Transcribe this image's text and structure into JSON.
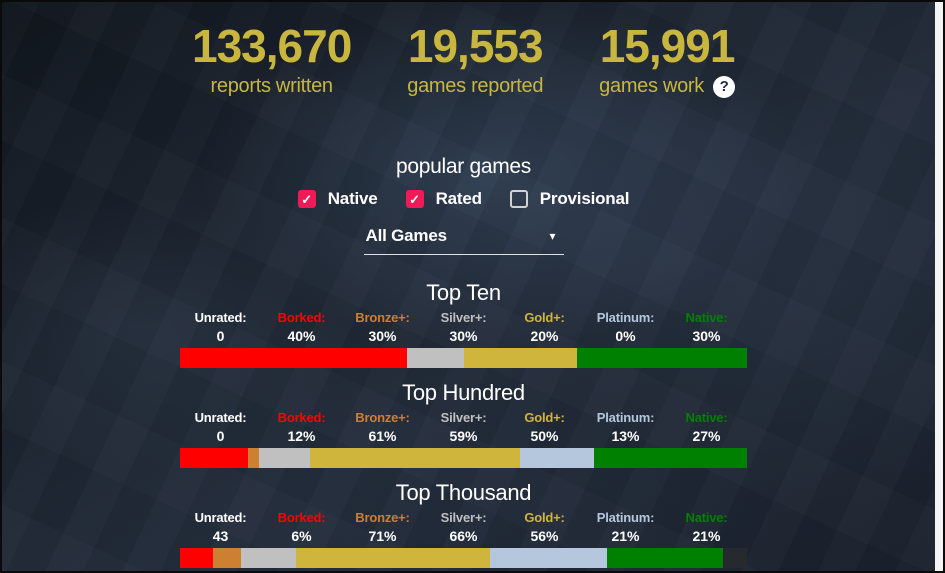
{
  "page": {
    "background_color": "#1e2531",
    "scrollbar_color": "#e9eaec",
    "accent_gold": "#c8b63f",
    "accent_pink": "#ef1a56"
  },
  "stats": [
    {
      "value": "133,670",
      "label": "reports written"
    },
    {
      "value": "19,553",
      "label": "games reported"
    },
    {
      "value": "15,991",
      "label": "games work"
    }
  ],
  "help_icon_glyph": "?",
  "popular_games": {
    "title": "popular games",
    "filters": [
      {
        "label": "Native",
        "checked": true
      },
      {
        "label": "Rated",
        "checked": true
      },
      {
        "label": "Provisional",
        "checked": false
      }
    ],
    "checkmark_glyph": "✓",
    "dropdown_value": "All Games",
    "dropdown_arrow": "▾"
  },
  "tiers": {
    "labels": [
      "Unrated:",
      "Borked:",
      "Bronze+:",
      "Silver+:",
      "Gold+:",
      "Platinum:",
      "Native:"
    ],
    "label_colors": [
      "#ffffff",
      "#fe0000",
      "#cd7f32",
      "#c0c0c0",
      "#cfb53b",
      "#b4c7dc",
      "#008000"
    ]
  },
  "bar_colors": {
    "borked": "#fe0000",
    "bronze": "#cd7f32",
    "silver": "#c0c0c0",
    "gold": "#cfb53b",
    "platinum": "#b4c7dc",
    "native": "#008000",
    "unrated": "#26292e"
  },
  "sections": [
    {
      "title": "Top Ten",
      "values": [
        "0",
        "40%",
        "30%",
        "30%",
        "20%",
        "0%",
        "30%"
      ],
      "segments": [
        {
          "tier": "borked",
          "pct": 40
        },
        {
          "tier": "bronze",
          "pct": 0
        },
        {
          "tier": "silver",
          "pct": 10
        },
        {
          "tier": "gold",
          "pct": 20
        },
        {
          "tier": "platinum",
          "pct": 0
        },
        {
          "tier": "native",
          "pct": 30
        },
        {
          "tier": "unrated",
          "pct": 0
        }
      ]
    },
    {
      "title": "Top Hundred",
      "values": [
        "0",
        "12%",
        "61%",
        "59%",
        "50%",
        "13%",
        "27%"
      ],
      "segments": [
        {
          "tier": "borked",
          "pct": 12
        },
        {
          "tier": "bronze",
          "pct": 2
        },
        {
          "tier": "silver",
          "pct": 9
        },
        {
          "tier": "gold",
          "pct": 37
        },
        {
          "tier": "platinum",
          "pct": 13
        },
        {
          "tier": "native",
          "pct": 27
        },
        {
          "tier": "unrated",
          "pct": 0
        }
      ]
    },
    {
      "title": "Top Thousand",
      "values": [
        "43",
        "6%",
        "71%",
        "66%",
        "56%",
        "21%",
        "21%"
      ],
      "segments": [
        {
          "tier": "borked",
          "pct": 6
        },
        {
          "tier": "bronze",
          "pct": 5
        },
        {
          "tier": "silver",
          "pct": 10
        },
        {
          "tier": "gold",
          "pct": 35
        },
        {
          "tier": "platinum",
          "pct": 21
        },
        {
          "tier": "native",
          "pct": 21
        },
        {
          "tier": "unrated",
          "pct": 4.3
        }
      ]
    }
  ]
}
